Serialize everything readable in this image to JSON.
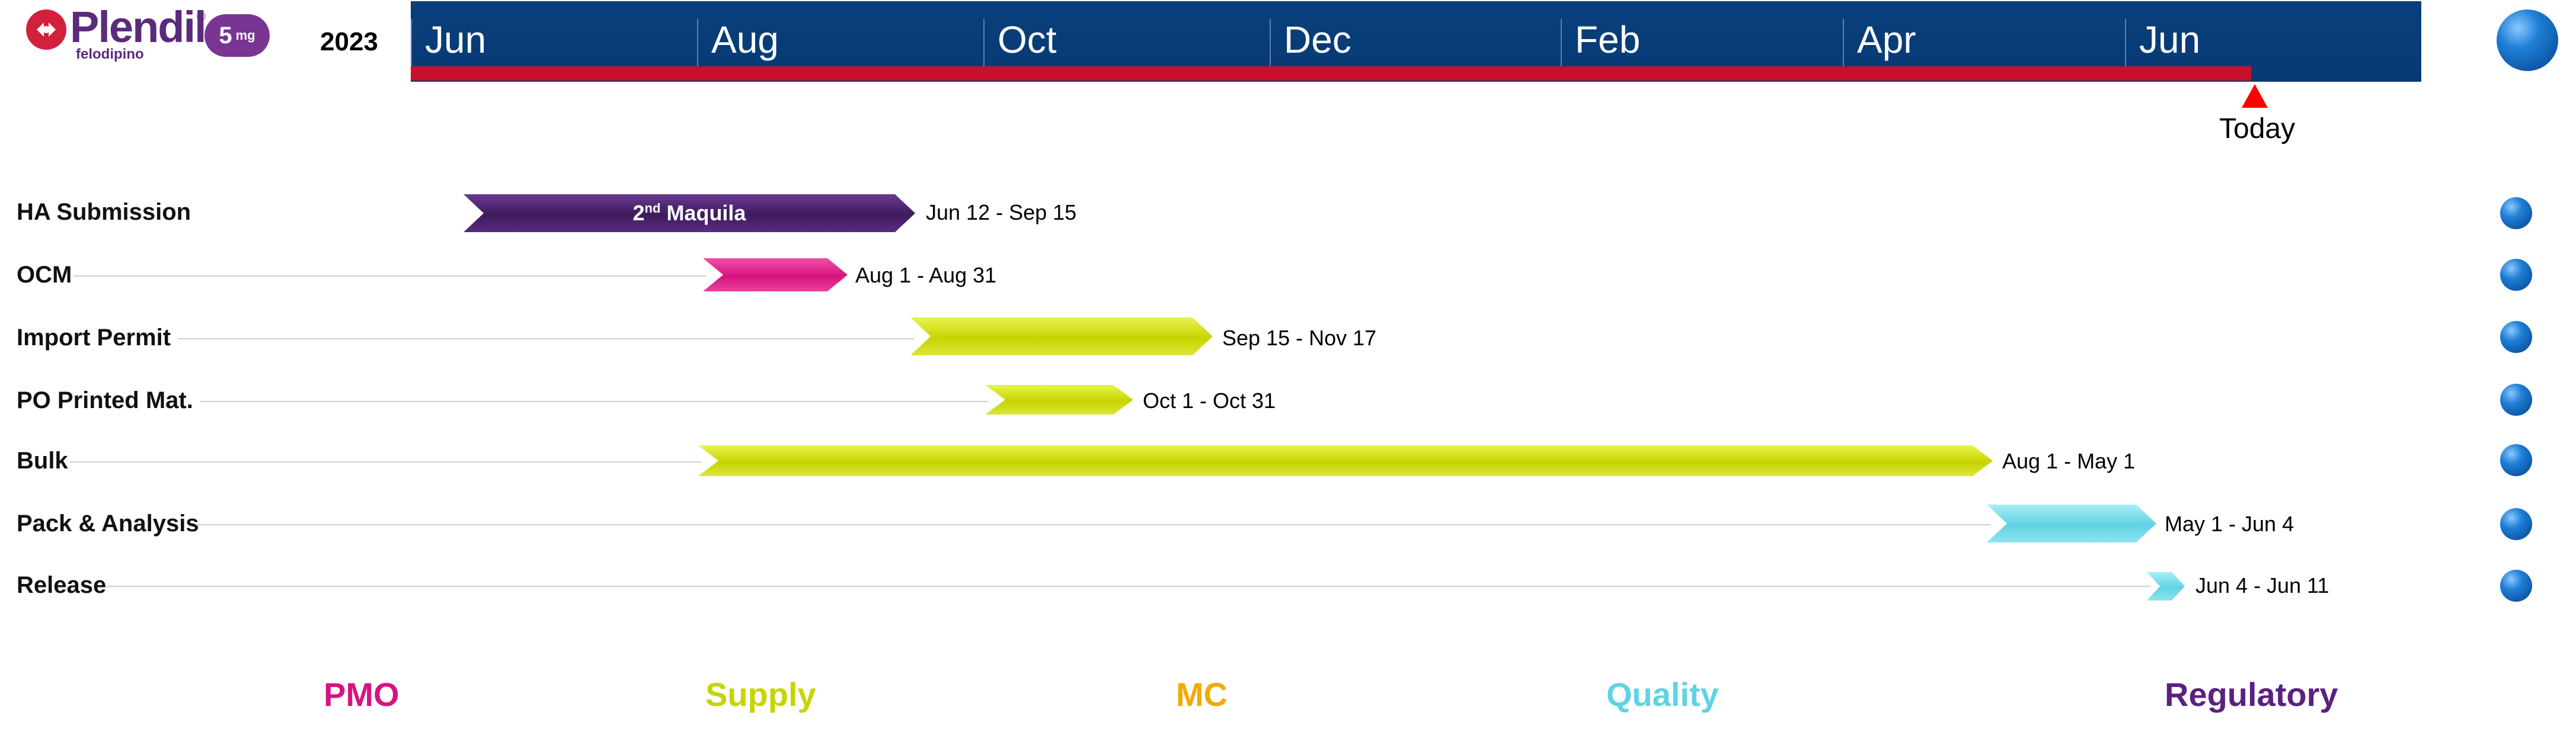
{
  "logo": {
    "name": "Plendil",
    "registered": "®",
    "subtitle": "felodipino",
    "dose_value": "5",
    "dose_unit": "mg"
  },
  "year": "2023",
  "months": [
    "Jun",
    "Aug",
    "Oct",
    "Dec",
    "Feb",
    "Apr",
    "Jun"
  ],
  "today_label": "Today",
  "rows": [
    {
      "label": "HA Submission",
      "bar_text": "2",
      "bar_text_sup": "nd",
      "bar_text_rest": " Maquila",
      "dates": "Jun 12 - Sep 15",
      "color": "#4a2268"
    },
    {
      "label": "OCM",
      "dates": "Aug 1 - Aug 31",
      "color": "#d6137e"
    },
    {
      "label": "Import Permit",
      "dates": "Sep 15 - Nov 17",
      "color": "#c6d400"
    },
    {
      "label": "PO Printed Mat.",
      "dates": "Oct 1 - Oct 31",
      "color": "#c6d400"
    },
    {
      "label": "Bulk",
      "dates": "Aug 1 - May 1",
      "color": "#c6d400"
    },
    {
      "label": "Pack & Analysis",
      "dates": "May 1 - Jun 4",
      "color": "#5fd3e3"
    },
    {
      "label": "Release",
      "dates": "Jun 4 - Jun 11",
      "color": "#5fd3e3"
    }
  ],
  "legend": [
    {
      "label": "PMO",
      "color": "#d6137e"
    },
    {
      "label": "Supply",
      "color": "#c6d400"
    },
    {
      "label": "MC",
      "color": "#f2a900"
    },
    {
      "label": "Quality",
      "color": "#5fd3e3"
    },
    {
      "label": "Regulatory",
      "color": "#5a2180"
    }
  ]
}
